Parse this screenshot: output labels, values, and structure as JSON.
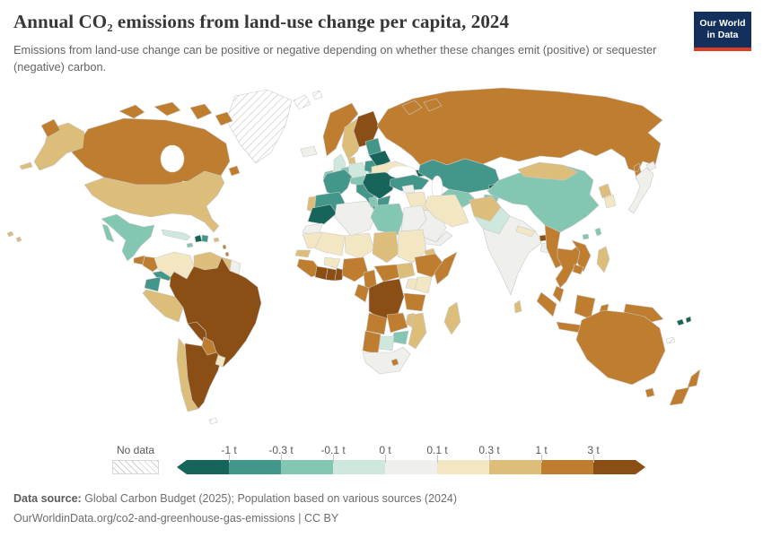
{
  "header": {
    "title": "Annual CO₂ emissions from land-use change per capita, 2024",
    "subtitle": "Emissions from land-use change can be positive or negative depending on whether these changes emit (positive) or sequester (negative) carbon.",
    "logo": {
      "line1": "Our World",
      "line2": "in Data",
      "bg": "#12305b",
      "accent": "#dc3e26"
    }
  },
  "legend": {
    "no_data_label": "No data",
    "ticks": [
      "-1 t",
      "-0.3 t",
      "-0.1 t",
      "0 t",
      "0.1 t",
      "0.3 t",
      "1 t",
      "3 t"
    ],
    "colors": [
      "#17645a",
      "#43978a",
      "#83c6b2",
      "#cfe8dd",
      "#efefec",
      "#f3e6c2",
      "#dcbd79",
      "#bf7d2f",
      "#8b4f15"
    ]
  },
  "footer": {
    "source_label": "Data source:",
    "source_text": " Global Carbon Budget (2025); Population based on various sources (2024)",
    "link_text": "OurWorldinData.org/co2-and-greenhouse-gas-emissions | CC BY"
  },
  "chart_data": {
    "type": "choropleth",
    "title": "Annual CO₂ emissions from land-use change per capita, 2024",
    "unit": "t CO₂ per capita",
    "legend_position": "bottom",
    "legend_buckets": [
      {
        "label": "< -1 t",
        "color": "#17645a"
      },
      {
        "label": "-1 to -0.3 t",
        "color": "#43978a"
      },
      {
        "label": "-0.3 to -0.1 t",
        "color": "#83c6b2"
      },
      {
        "label": "-0.1 to 0 t",
        "color": "#cfe8dd"
      },
      {
        "label": "0 to 0.1 t",
        "color": "#efefec"
      },
      {
        "label": "0.1 to 0.3 t",
        "color": "#f3e6c2"
      },
      {
        "label": "0.3 to 1 t",
        "color": "#dcbd79"
      },
      {
        "label": "1 to 3 t",
        "color": "#bf7d2f"
      },
      {
        "label": "> 3 t",
        "color": "#8b4f15"
      }
    ],
    "no_data_label": "No data",
    "countries": {
      "greenland": "url(#hatch)",
      "svalbard": "url(#hatch)",
      "falkland_islands": "url(#hatch)",
      "new_caledonia": "url(#hatch)",
      "canada": "#bf7d2f",
      "usa": "#dcbd79",
      "mexico": "#83c6b2",
      "guatemala": "#bf7d2f",
      "honduras_nicaragua": "#bf7d2f",
      "costa_rica_panama": "#43978a",
      "cuba": "#cfe8dd",
      "haiti": "#17645a",
      "dominican_republic": "#43978a",
      "jamaica": "#83c6b2",
      "puerto_rico": "#dcbd79",
      "lesser_antilles": "#bf7d2f",
      "colombia": "#f3e6c2",
      "venezuela": "#dcbd79",
      "guyana": "#dcbd79",
      "suriname_guiana": "#efefec",
      "ecuador": "#43978a",
      "peru": "#dcbd79",
      "brazil": "#8b4f15",
      "bolivia": "#8b4f15",
      "paraguay": "#bf7d2f",
      "chile": "#dcbd79",
      "argentina": "#8b4f15",
      "uruguay": "#f3e6c2",
      "iceland": "#efefec",
      "united_kingdom": "#cfe8dd",
      "ireland": "#83c6b2",
      "norway": "#bf7d2f",
      "sweden": "#dcbd79",
      "finland": "#8b4f15",
      "denmark": "#dcbd79",
      "germany": "#cfe8dd",
      "benelux": "#83c6b2",
      "france": "#43978a",
      "spain": "#43978a",
      "portugal": "#dcbd79",
      "italy": "#43978a",
      "switzerland_austria": "#83c6b2",
      "czechia_slovakia": "#83c6b2",
      "poland": "#43978a",
      "baltics": "#43978a",
      "belarus": "#17645a",
      "ukraine": "#f3e6c2",
      "balkans": "#17645a",
      "greece": "#43978a",
      "russia": "#bf7d2f",
      "turkey": "#43978a",
      "georgia": "#17645a",
      "azerbaijan": "#f3e6c2",
      "syria": "#efefec",
      "iraq": "#f3e6c2",
      "saudi_arabia": "#efefec",
      "yemen_oman": "#efefec",
      "iran": "#f3e6c2",
      "kazakhstan": "#43978a",
      "uzbekistan": "#83c6b2",
      "turkmenistan": "#cfe8dd",
      "kyrgyzstan": "#17645a",
      "tajikistan": "#83c6b2",
      "afghanistan": "#dcbd79",
      "pakistan": "#cfe8dd",
      "india": "#efefec",
      "nepal": "#f3e6c2",
      "bhutan": "#8b4f15",
      "bangladesh": "#efefec",
      "sri_lanka": "#dcbd79",
      "china": "#83c6b2",
      "mongolia": "#dcbd79",
      "north_korea": "#dcbd79",
      "south_korea": "#f3e6c2",
      "japan": "#efefec",
      "taiwan": "#83c6b2",
      "hainan": "#83c6b2",
      "myanmar": "#bf7d2f",
      "thailand": "#bf7d2f",
      "laos_vietnam": "#bf7d2f",
      "cambodia": "#bf7d2f",
      "malaysia": "#bf7d2f",
      "sumatra": "#bf7d2f",
      "java": "#bf7d2f",
      "borneo": "#bf7d2f",
      "sulawesi": "#bf7d2f",
      "philippines": "#dcbd79",
      "new_guinea": "#bf7d2f",
      "australia": "#bf7d2f",
      "tasmania": "#bf7d2f",
      "new_zealand": "#bf7d2f",
      "fiji": "#17645a",
      "morocco": "#17645a",
      "western_sahara": "#efefec",
      "algeria": "#efefec",
      "tunisia": "#83c6b2",
      "libya": "#83c6b2",
      "egypt": "#efefec",
      "mauritania": "#f3e6c2",
      "mali": "#f3e6c2",
      "senegal": "#dcbd79",
      "guinea": "#bf7d2f",
      "ivory_coast": "#8b4f15",
      "ghana": "#8b4f15",
      "togo_benin": "#8b4f15",
      "burkina_faso": "#f3e6c2",
      "niger": "#f3e6c2",
      "chad": "#dcbd79",
      "sudan": "#f3e6c2",
      "eritrea": "#dcbd79",
      "nigeria": "#bf7d2f",
      "cameroon": "#bf7d2f",
      "central_african_republic": "#bf7d2f",
      "south_sudan": "#dcbd79",
      "ethiopia": "#bf7d2f",
      "somalia": "#bf7d2f",
      "kenya": "#f3e6c2",
      "uganda": "#f3e6c2",
      "gabon_congo": "#bf7d2f",
      "drc": "#8b4f15",
      "tanzania": "#bf7d2f",
      "angola": "#bf7d2f",
      "zambia": "#bf7d2f",
      "malawi": "#dcbd79",
      "mozambique": "#dcbd79",
      "zimbabwe": "#83c6b2",
      "botswana": "#cfe8dd",
      "namibia": "#bf7d2f",
      "south_africa": "#efefec",
      "lesotho": "#bf7d2f",
      "madagascar": "#dcbd79"
    }
  }
}
